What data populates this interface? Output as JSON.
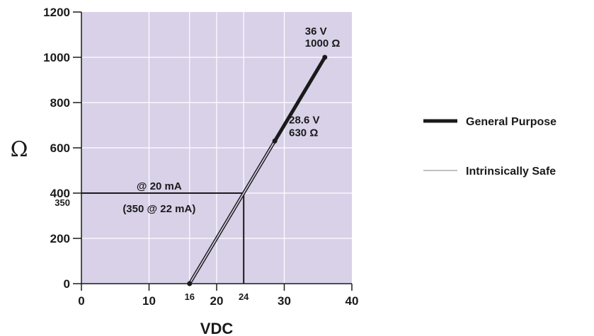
{
  "chart_data": {
    "type": "line",
    "xlabel": "VDC",
    "ylabel": "Ω",
    "xlim": [
      0,
      40
    ],
    "ylim": [
      0,
      1200
    ],
    "x_ticks": [
      0,
      10,
      20,
      30,
      40
    ],
    "y_ticks": [
      0,
      200,
      400,
      600,
      800,
      1000,
      1200
    ],
    "extra_x_ticks": [
      16,
      24
    ],
    "extra_y_ticks": [
      350
    ],
    "grid": true,
    "plot_background": "#d8d1e8",
    "grid_color": "#ffffff",
    "line_color": "#1a1a1a",
    "legend_position": "right",
    "series": [
      {
        "name": "General Purpose",
        "style": "thick",
        "points": [
          [
            28.6,
            630
          ],
          [
            36,
            1000
          ]
        ]
      },
      {
        "name": "Intrinsically Safe",
        "style": "thin",
        "points": [
          [
            16,
            0
          ],
          [
            36,
            1000
          ]
        ]
      }
    ],
    "reference_lines": [
      {
        "from": [
          0,
          400
        ],
        "to": [
          24,
          400
        ]
      },
      {
        "from": [
          24,
          400
        ],
        "to": [
          24,
          0
        ]
      }
    ],
    "markers": [
      [
        16,
        0
      ],
      [
        28.6,
        630
      ],
      [
        36,
        1000
      ]
    ],
    "annotations": [
      {
        "id": "top_voltage",
        "text": "36 V"
      },
      {
        "id": "top_resistance",
        "text": "1000 Ω"
      },
      {
        "id": "mid_voltage",
        "text": "28.6 V"
      },
      {
        "id": "mid_resistance",
        "text": "630 Ω"
      },
      {
        "id": "load_20ma",
        "text": "@ 20 mA"
      },
      {
        "id": "load_22ma",
        "text": "(350 @ 22 mA)"
      }
    ]
  }
}
